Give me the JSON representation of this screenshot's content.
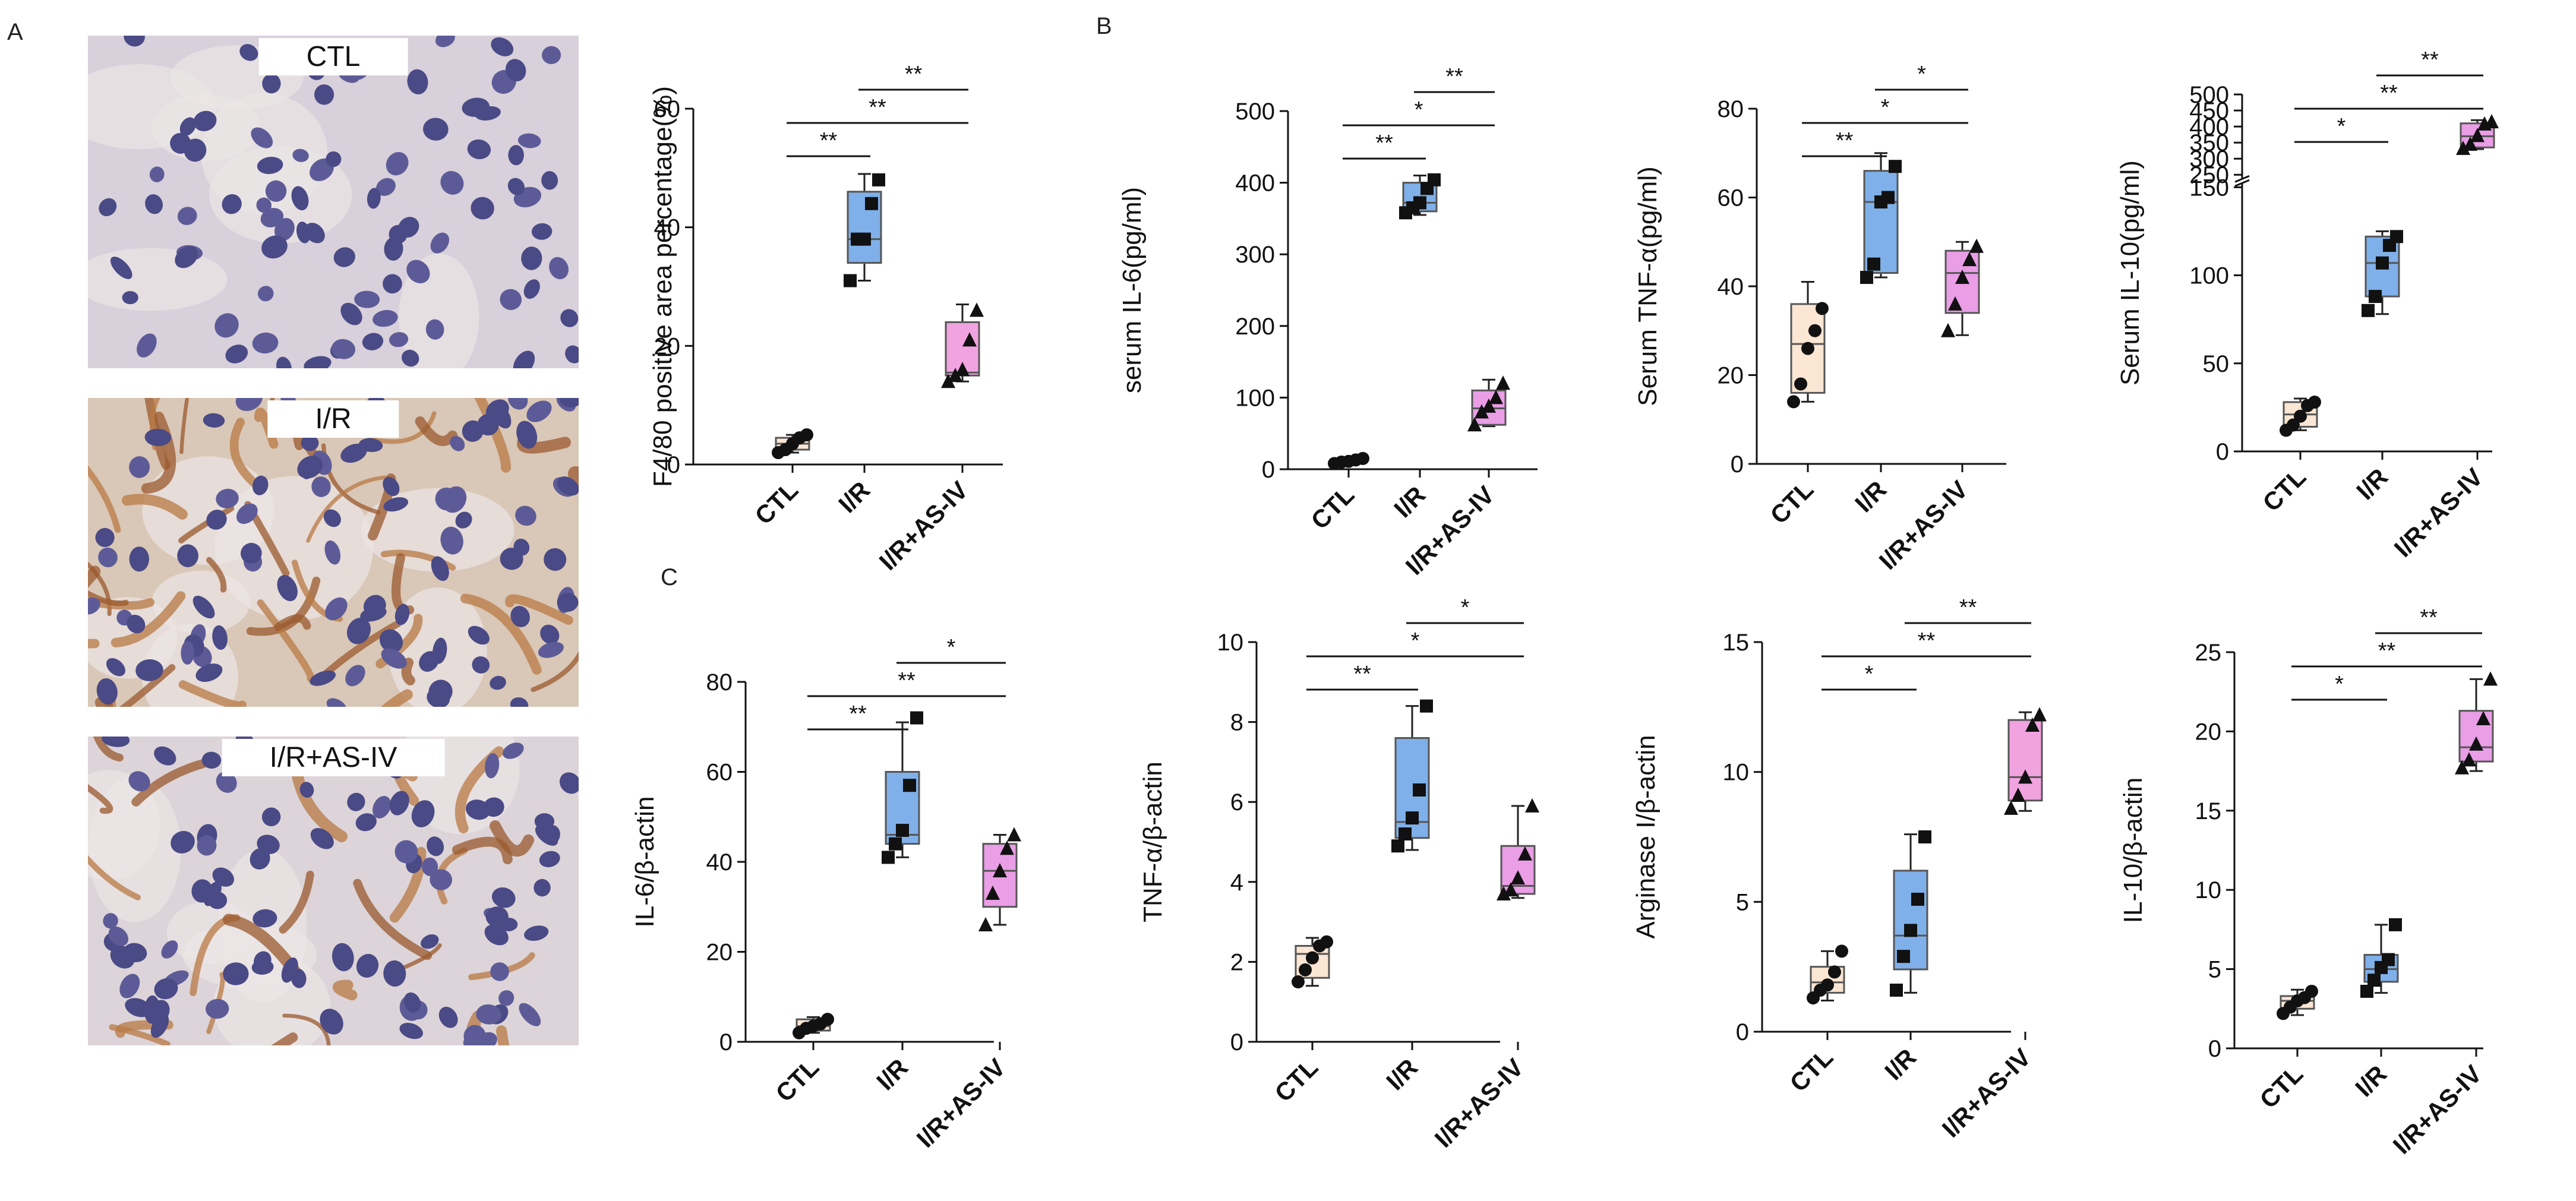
{
  "panels": {
    "a": "A",
    "b": "B",
    "c": "C"
  },
  "micrographs": [
    {
      "label": "CTL",
      "condition": "ctl"
    },
    {
      "label": "I/R",
      "condition": "ir"
    },
    {
      "label": "I/R+AS-IV",
      "condition": "irasiv"
    }
  ],
  "colors": {
    "ctl": "#fbe5d3",
    "ir": "#7fb0e9",
    "irasiv": "#e99ee6",
    "irasiv_alt": "#f1a3e0",
    "point": "#111111"
  },
  "chart_data": [
    {
      "id": "f480",
      "type": "box",
      "title": "",
      "xlabel": "",
      "ylabel": "F4/80 positive area percentage(%)",
      "categories": [
        "CTL",
        "I/R",
        "I/R+AS-IV"
      ],
      "ylim": [
        0,
        60
      ],
      "yticks": [
        0,
        20,
        40,
        60
      ],
      "boxes": [
        {
          "min": 2,
          "q1": 2.5,
          "median": 3.5,
          "q3": 4.5,
          "max": 5,
          "points": [
            2,
            2.5,
            3.5,
            4.5,
            5
          ],
          "marker": "circle",
          "fill": "#fbe5d3"
        },
        {
          "min": 31,
          "q1": 34,
          "median": 38,
          "q3": 46,
          "max": 49,
          "points": [
            31,
            38,
            38,
            44,
            48
          ],
          "marker": "square",
          "fill": "#7fb0e9"
        },
        {
          "min": 14,
          "q1": 15,
          "median": 15.5,
          "q3": 24,
          "max": 27,
          "points": [
            14,
            15,
            16,
            21,
            26
          ],
          "marker": "triangle",
          "fill": "#f1a3e0"
        }
      ],
      "significance": [
        {
          "from": 0,
          "to": 1,
          "label": "**"
        },
        {
          "from": 0,
          "to": 2,
          "label": "**"
        },
        {
          "from": 1,
          "to": 2,
          "label": "**"
        }
      ]
    },
    {
      "id": "il6-serum",
      "type": "box",
      "title": "",
      "xlabel": "",
      "ylabel": "serum IL-6(pg/ml)",
      "categories": [
        "CTL",
        "I/R",
        "I/R+AS-IV"
      ],
      "ylim": [
        0,
        500
      ],
      "yticks": [
        0,
        100,
        200,
        300,
        400,
        500
      ],
      "boxes": [
        {
          "min": 8,
          "q1": 9,
          "median": 11,
          "q3": 13,
          "max": 15,
          "points": [
            8,
            10,
            11,
            13,
            15
          ],
          "marker": "circle",
          "fill": "#fbe5d3"
        },
        {
          "min": 355,
          "q1": 360,
          "median": 372,
          "q3": 400,
          "max": 410,
          "points": [
            358,
            365,
            372,
            392,
            404
          ],
          "marker": "square",
          "fill": "#7fb0e9"
        },
        {
          "min": 60,
          "q1": 62,
          "median": 85,
          "q3": 110,
          "max": 125,
          "points": [
            62,
            80,
            88,
            100,
            120
          ],
          "marker": "triangle",
          "fill": "#e99ee6"
        }
      ],
      "significance": [
        {
          "from": 0,
          "to": 1,
          "label": "**"
        },
        {
          "from": 0,
          "to": 2,
          "label": "*"
        },
        {
          "from": 1,
          "to": 2,
          "label": "**"
        }
      ]
    },
    {
      "id": "tnf-serum",
      "type": "box",
      "title": "",
      "xlabel": "",
      "ylabel": "Serum TNF-α(pg/ml)",
      "categories": [
        "CTL",
        "I/R",
        "I/R+AS-IV"
      ],
      "ylim": [
        0,
        80
      ],
      "yticks": [
        0,
        20,
        40,
        60,
        80
      ],
      "boxes": [
        {
          "min": 14,
          "q1": 16,
          "median": 27,
          "q3": 36,
          "max": 41,
          "points": [
            14,
            18,
            26,
            30,
            35
          ],
          "marker": "circle",
          "fill": "#fbe5d3"
        },
        {
          "min": 42,
          "q1": 43,
          "median": 59,
          "q3": 66,
          "max": 70,
          "points": [
            42,
            45,
            59,
            60,
            67
          ],
          "marker": "square",
          "fill": "#7fb0e9"
        },
        {
          "min": 29,
          "q1": 34,
          "median": 43,
          "q3": 48,
          "max": 50,
          "points": [
            30,
            36,
            42,
            46,
            49
          ],
          "marker": "triangle",
          "fill": "#e99ee6"
        }
      ],
      "significance": [
        {
          "from": 0,
          "to": 1,
          "label": "**"
        },
        {
          "from": 0,
          "to": 2,
          "label": "*"
        },
        {
          "from": 1,
          "to": 2,
          "label": "*"
        }
      ]
    },
    {
      "id": "il10-serum",
      "type": "box",
      "title": "",
      "xlabel": "",
      "ylabel": "Serum IL-10(pg/ml)",
      "categories": [
        "CTL",
        "I/R",
        "I/R+AS-IV"
      ],
      "ylim": [
        0,
        500
      ],
      "axis_break": [
        150,
        250
      ],
      "yticks": [
        0,
        50,
        100,
        150,
        250,
        300,
        350,
        400,
        450,
        500
      ],
      "boxes": [
        {
          "min": 12,
          "q1": 14,
          "median": 21,
          "q3": 28,
          "max": 30,
          "points": [
            12,
            15,
            20,
            26,
            28
          ],
          "marker": "circle",
          "fill": "#fbe5d3"
        },
        {
          "min": 78,
          "q1": 88,
          "median": 107,
          "q3": 122,
          "max": 125,
          "points": [
            80,
            88,
            107,
            117,
            122
          ],
          "marker": "square",
          "fill": "#7fb0e9"
        },
        {
          "min": 330,
          "q1": 335,
          "median": 370,
          "q3": 410,
          "max": 420,
          "points": [
            332,
            345,
            372,
            408,
            415
          ],
          "marker": "triangle",
          "fill": "#e99ee6"
        }
      ],
      "significance": [
        {
          "from": 0,
          "to": 1,
          "label": "*"
        },
        {
          "from": 0,
          "to": 2,
          "label": "**"
        },
        {
          "from": 1,
          "to": 2,
          "label": "**"
        }
      ]
    },
    {
      "id": "il6-mrna",
      "type": "box",
      "title": "",
      "xlabel": "",
      "ylabel": "IL-6/β-actin",
      "categories": [
        "CTL",
        "I/R",
        "I/R+AS-IV"
      ],
      "ylim": [
        0,
        80
      ],
      "yticks": [
        0,
        20,
        40,
        60,
        80
      ],
      "boxes": [
        {
          "min": 2,
          "q1": 2.5,
          "median": 3.5,
          "q3": 5,
          "max": 5.5,
          "points": [
            2,
            3,
            3.5,
            4,
            5
          ],
          "marker": "circle",
          "fill": "#fbe5d3"
        },
        {
          "min": 41,
          "q1": 44,
          "median": 46,
          "q3": 60,
          "max": 71,
          "points": [
            41,
            44,
            47,
            57,
            72
          ],
          "marker": "square",
          "fill": "#7fb0e9"
        },
        {
          "min": 26,
          "q1": 30,
          "median": 38,
          "q3": 44,
          "max": 46,
          "points": [
            26,
            33,
            38,
            43,
            46
          ],
          "marker": "triangle",
          "fill": "#e99ee6"
        }
      ],
      "significance": [
        {
          "from": 0,
          "to": 1,
          "label": "**"
        },
        {
          "from": 0,
          "to": 2,
          "label": "**"
        },
        {
          "from": 1,
          "to": 2,
          "label": "*"
        }
      ]
    },
    {
      "id": "tnf-mrna",
      "type": "box",
      "title": "",
      "xlabel": "",
      "ylabel": "TNF-α/β-actin",
      "categories": [
        "CTL",
        "I/R",
        "I/R+AS-IV"
      ],
      "ylim": [
        0,
        10
      ],
      "yticks": [
        0,
        2,
        4,
        6,
        8,
        10
      ],
      "boxes": [
        {
          "min": 1.4,
          "q1": 1.6,
          "median": 2.2,
          "q3": 2.4,
          "max": 2.6,
          "points": [
            1.5,
            1.8,
            2.1,
            2.4,
            2.5
          ],
          "marker": "circle",
          "fill": "#fbe5d3"
        },
        {
          "min": 4.8,
          "q1": 5.1,
          "median": 5.5,
          "q3": 7.6,
          "max": 8.4,
          "points": [
            4.9,
            5.2,
            5.6,
            6.3,
            8.4
          ],
          "marker": "square",
          "fill": "#7fb0e9"
        },
        {
          "min": 3.6,
          "q1": 3.7,
          "median": 3.9,
          "q3": 4.9,
          "max": 5.9,
          "points": [
            3.7,
            3.8,
            4.1,
            4.7,
            5.9
          ],
          "marker": "triangle",
          "fill": "#e99ee6"
        }
      ],
      "significance": [
        {
          "from": 0,
          "to": 1,
          "label": "**"
        },
        {
          "from": 0,
          "to": 2,
          "label": "*"
        },
        {
          "from": 1,
          "to": 2,
          "label": "*"
        }
      ]
    },
    {
      "id": "arg-mrna",
      "type": "box",
      "title": "",
      "xlabel": "",
      "ylabel": "Arginase I/β-actin",
      "categories": [
        "CTL",
        "I/R",
        "I/R+AS-IV"
      ],
      "ylim": [
        0,
        15
      ],
      "yticks": [
        0,
        5,
        10,
        15
      ],
      "boxes": [
        {
          "min": 1.2,
          "q1": 1.5,
          "median": 1.9,
          "q3": 2.5,
          "max": 3.1,
          "points": [
            1.3,
            1.6,
            1.8,
            2.3,
            3.1
          ],
          "marker": "circle",
          "fill": "#fbe5d3"
        },
        {
          "min": 1.5,
          "q1": 2.4,
          "median": 3.7,
          "q3": 6.2,
          "max": 7.6,
          "points": [
            1.6,
            2.9,
            3.9,
            5.1,
            7.5
          ],
          "marker": "square",
          "fill": "#7fb0e9"
        },
        {
          "min": 8.5,
          "q1": 8.9,
          "median": 9.8,
          "q3": 12.0,
          "max": 12.3,
          "points": [
            8.6,
            9.1,
            9.8,
            11.8,
            12.2
          ],
          "marker": "triangle",
          "fill": "#f1a3e0"
        }
      ],
      "significance": [
        {
          "from": 0,
          "to": 1,
          "label": "*"
        },
        {
          "from": 0,
          "to": 2,
          "label": "**"
        },
        {
          "from": 1,
          "to": 2,
          "label": "**"
        }
      ]
    },
    {
      "id": "il10-mrna",
      "type": "box",
      "title": "",
      "xlabel": "",
      "ylabel": "IL-10/β-actin",
      "categories": [
        "CTL",
        "I/R",
        "I/R+AS-IV"
      ],
      "ylim": [
        0,
        25
      ],
      "yticks": [
        0,
        5,
        10,
        15,
        20,
        25
      ],
      "boxes": [
        {
          "min": 2.1,
          "q1": 2.5,
          "median": 3.0,
          "q3": 3.3,
          "max": 3.7,
          "points": [
            2.2,
            2.6,
            3.0,
            3.2,
            3.6
          ],
          "marker": "circle",
          "fill": "#fbe5d3"
        },
        {
          "min": 3.5,
          "q1": 4.2,
          "median": 5.0,
          "q3": 5.9,
          "max": 7.8,
          "points": [
            3.6,
            4.3,
            5.1,
            5.6,
            7.8
          ],
          "marker": "square",
          "fill": "#7fb0e9"
        },
        {
          "min": 17.5,
          "q1": 18.1,
          "median": 19.0,
          "q3": 21.3,
          "max": 23.3,
          "points": [
            17.7,
            18.2,
            19.2,
            20.8,
            23.3
          ],
          "marker": "triangle",
          "fill": "#e99ee6"
        }
      ],
      "significance": [
        {
          "from": 0,
          "to": 1,
          "label": "*"
        },
        {
          "from": 0,
          "to": 2,
          "label": "**"
        },
        {
          "from": 1,
          "to": 2,
          "label": "**"
        }
      ]
    }
  ]
}
